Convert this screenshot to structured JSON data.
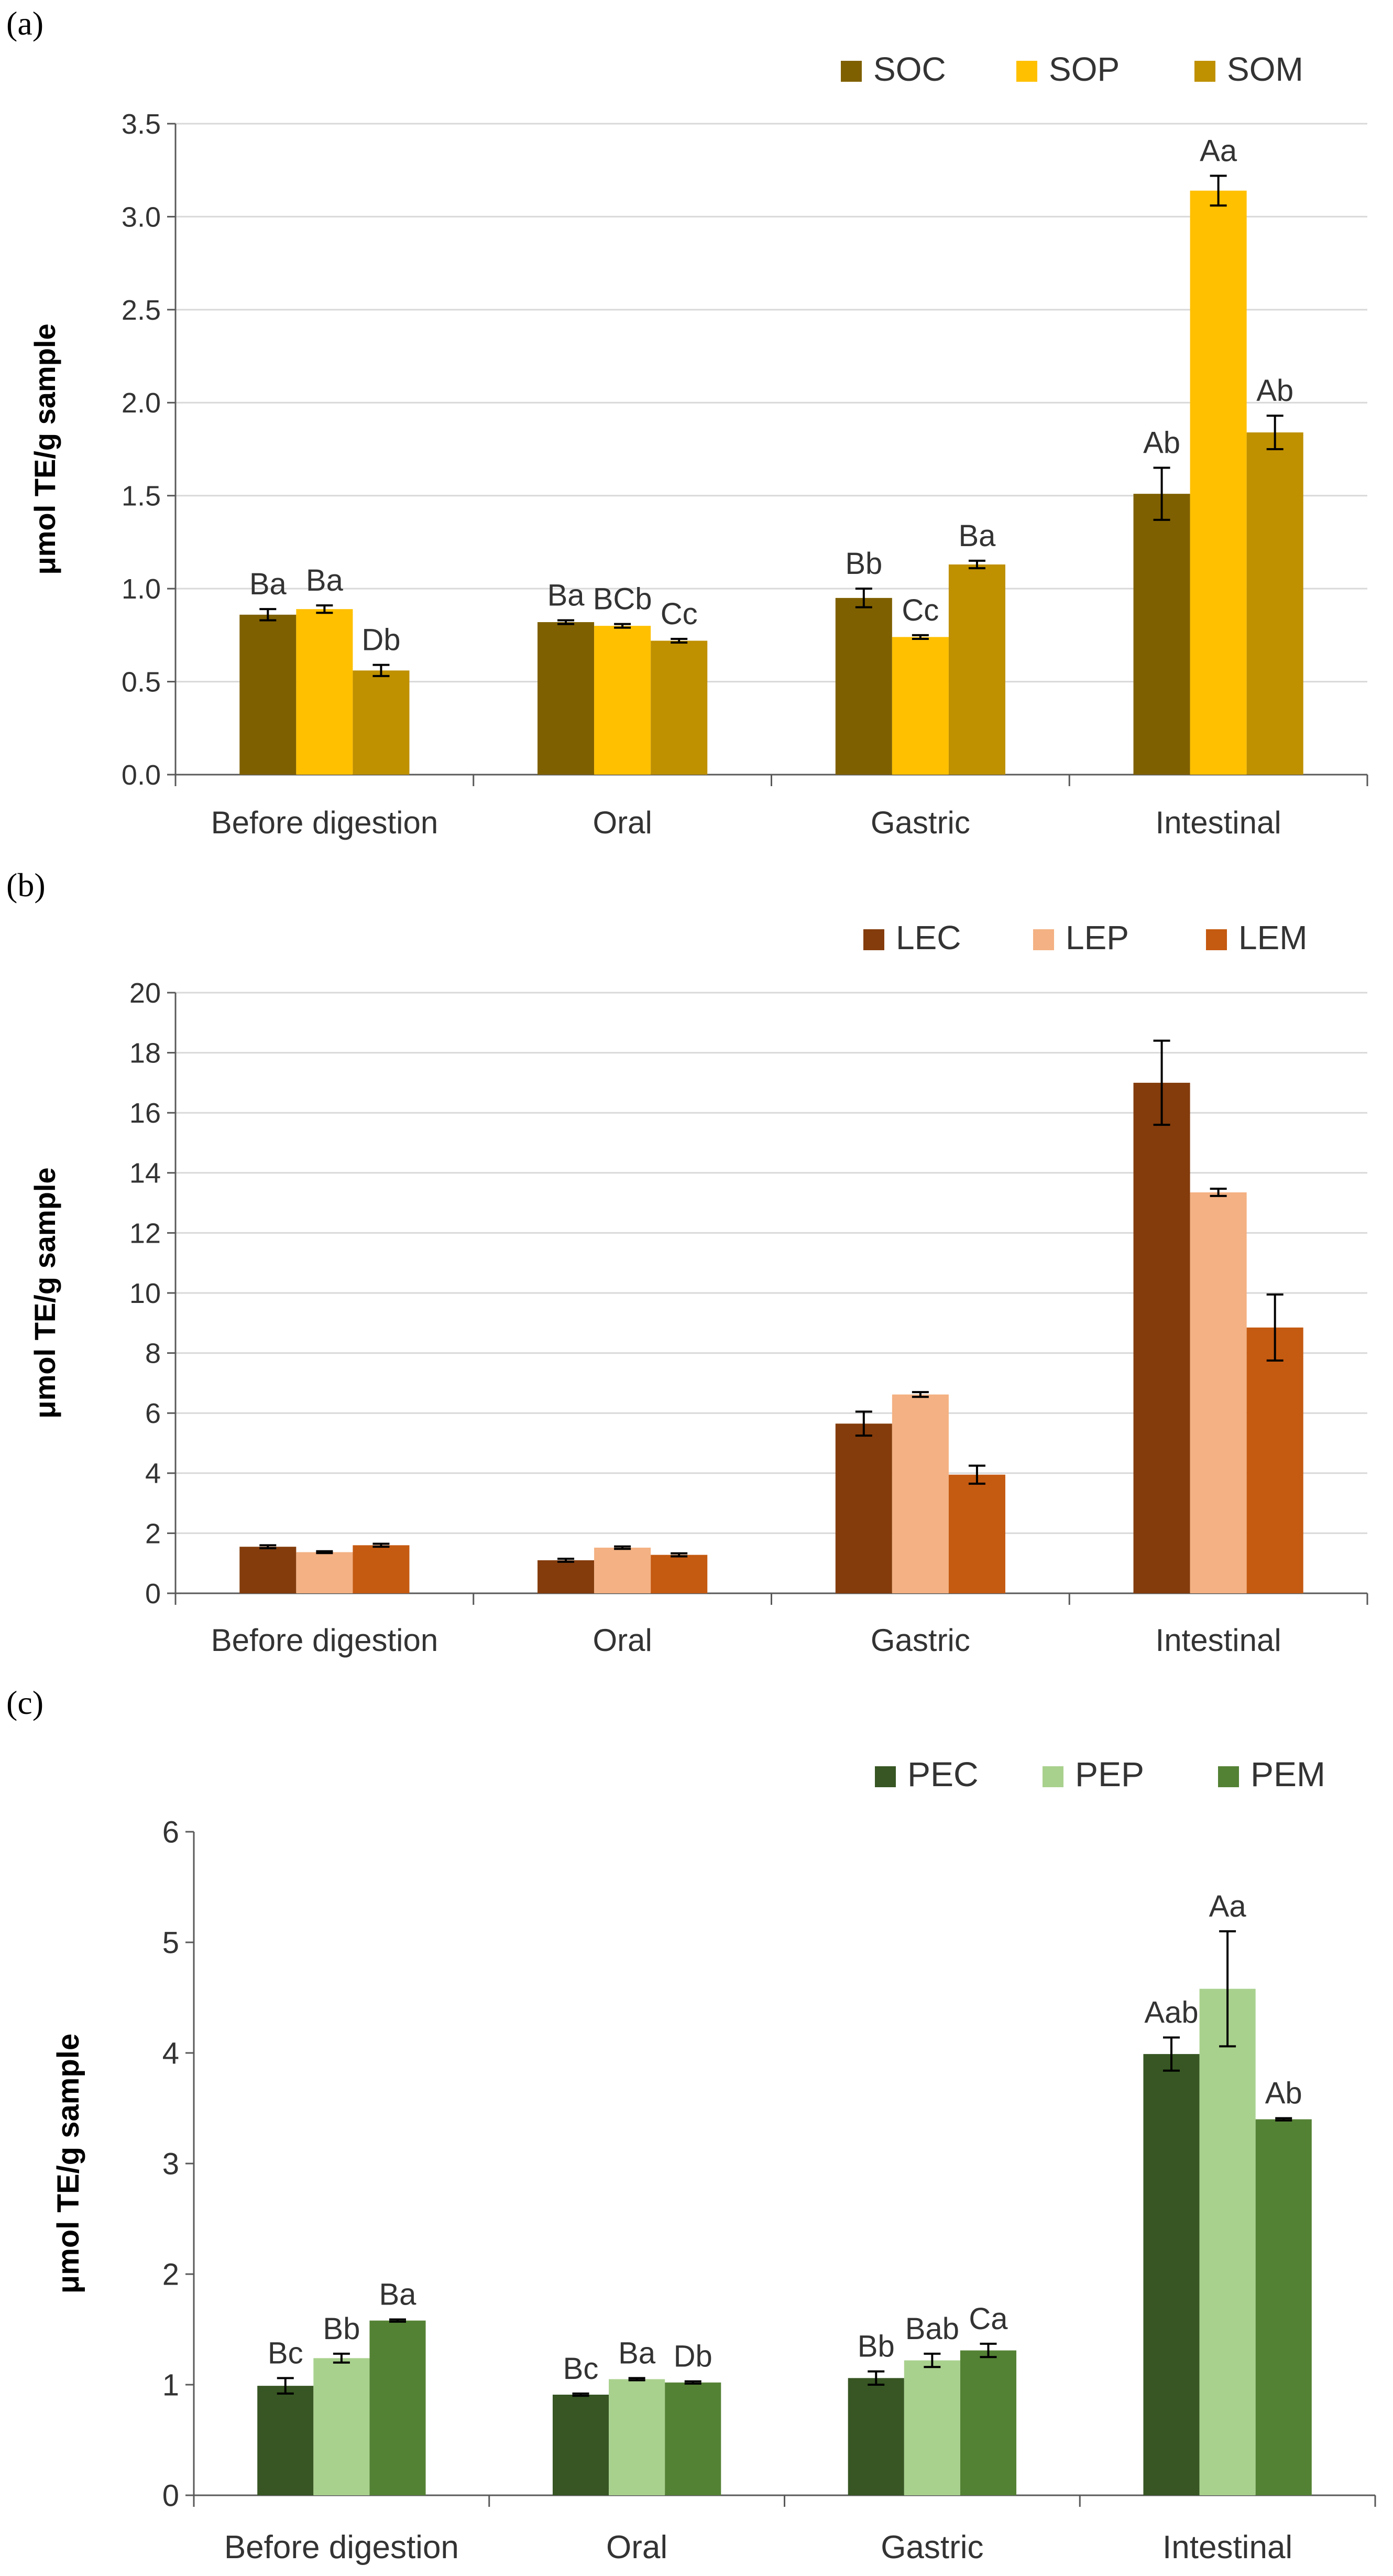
{
  "chart_data": [
    {
      "panel": "(a)",
      "type": "bar",
      "title": "",
      "ylabel": "μmol TE/g sample",
      "xlabel": "",
      "ylim": [
        0,
        3.5
      ],
      "yticks": [
        0.0,
        0.5,
        1.0,
        1.5,
        2.0,
        2.5,
        3.0,
        3.5
      ],
      "ytick_labels": [
        "0.0",
        "0.5",
        "1.0",
        "1.5",
        "2.0",
        "2.5",
        "3.0",
        "3.5"
      ],
      "categories": [
        "Before digestion",
        "Oral",
        "Gastric",
        "Intestinal"
      ],
      "legend_position": "top-right",
      "grid": true,
      "series": [
        {
          "name": "SOC",
          "color": "#7F6000",
          "values": [
            0.86,
            0.82,
            0.95,
            1.51
          ],
          "errors": [
            0.03,
            0.01,
            0.05,
            0.14
          ],
          "labels": [
            "Ba",
            "Ba",
            "Bb",
            "Ab"
          ]
        },
        {
          "name": "SOP",
          "color": "#FFC000",
          "values": [
            0.89,
            0.8,
            0.74,
            3.14
          ],
          "errors": [
            0.02,
            0.01,
            0.01,
            0.08
          ],
          "labels": [
            "Ba",
            "BCb",
            "Cc",
            "Aa"
          ]
        },
        {
          "name": "SOM",
          "color": "#BF9000",
          "values": [
            0.56,
            0.72,
            1.13,
            1.84
          ],
          "errors": [
            0.03,
            0.01,
            0.02,
            0.09
          ],
          "labels": [
            "Db",
            "Cc",
            "Ba",
            "Ab"
          ]
        }
      ]
    },
    {
      "panel": "(b)",
      "type": "bar",
      "title": "",
      "ylabel": "μmol TE/g sample",
      "xlabel": "",
      "ylim": [
        0,
        20
      ],
      "yticks": [
        0,
        2,
        4,
        6,
        8,
        10,
        12,
        14,
        16,
        18,
        20
      ],
      "ytick_labels": [
        "0",
        "2",
        "4",
        "6",
        "8",
        "10",
        "12",
        "14",
        "16",
        "18",
        "20"
      ],
      "categories": [
        "Before digestion",
        "Oral",
        "Gastric",
        "Intestinal"
      ],
      "legend_position": "top-right",
      "grid": true,
      "series": [
        {
          "name": "LEC",
          "color": "#843C0C",
          "values": [
            1.55,
            1.1,
            5.65,
            17.0
          ],
          "errors": [
            0.05,
            0.05,
            0.4,
            1.4
          ],
          "labels": []
        },
        {
          "name": "LEP",
          "color": "#F4B183",
          "values": [
            1.37,
            1.52,
            6.62,
            13.35
          ],
          "errors": [
            0.03,
            0.04,
            0.08,
            0.12
          ],
          "labels": []
        },
        {
          "name": "LEM",
          "color": "#C55A11",
          "values": [
            1.6,
            1.28,
            3.95,
            8.85
          ],
          "errors": [
            0.05,
            0.05,
            0.3,
            1.1
          ],
          "labels": []
        }
      ]
    },
    {
      "panel": "(c)",
      "type": "bar",
      "title": "",
      "ylabel": "μmol TE/g sample",
      "xlabel": "",
      "ylim": [
        0,
        6
      ],
      "yticks": [
        0,
        1,
        2,
        3,
        4,
        5,
        6
      ],
      "ytick_labels": [
        "0",
        "1",
        "2",
        "3",
        "4",
        "5",
        "6"
      ],
      "categories": [
        "Before digestion",
        "Oral",
        "Gastric",
        "Intestinal"
      ],
      "legend_position": "top-right",
      "grid": false,
      "series": [
        {
          "name": "PEC",
          "color": "#375623",
          "values": [
            0.99,
            0.91,
            1.06,
            3.99
          ],
          "errors": [
            0.07,
            0.01,
            0.06,
            0.15
          ],
          "labels": [
            "Bc",
            "Bc",
            "Bb",
            "Aab"
          ]
        },
        {
          "name": "PEP",
          "color": "#A9D18E",
          "values": [
            1.24,
            1.05,
            1.22,
            4.58
          ],
          "errors": [
            0.04,
            0.01,
            0.06,
            0.52
          ],
          "labels": [
            "Bb",
            "Ba",
            "Bab",
            "Aa"
          ]
        },
        {
          "name": "PEM",
          "color": "#548235",
          "values": [
            1.58,
            1.02,
            1.31,
            3.4
          ],
          "errors": [
            0.01,
            0.01,
            0.06,
            0.01
          ],
          "labels": [
            "Ba",
            "Db",
            "Ca",
            "Ab"
          ]
        }
      ]
    }
  ]
}
